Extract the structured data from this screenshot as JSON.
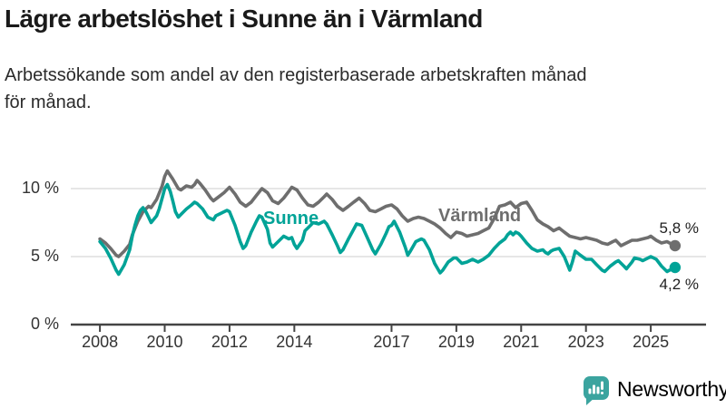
{
  "header": {
    "title": "Lägre arbetslöshet i Sunne än i Värmland",
    "subtitle": "Arbetssökande som andel av den registerbaserade arbetskraften månad för månad."
  },
  "colors": {
    "title_text": "#1a1a1a",
    "body_text": "#2b2b2b",
    "axis": "#444444",
    "axis_text": "#333333",
    "grid": "#dddddd",
    "varmland": "#6e6e6e",
    "sunne": "#00a397",
    "brand": "#3ba49f"
  },
  "chart_data": {
    "type": "line",
    "title": "Lägre arbetslöshet i Sunne än i Värmland",
    "xlabel": "",
    "ylabel": "",
    "xlim": [
      2007.1,
      2026.6
    ],
    "ylim": [
      0,
      12.5
    ],
    "grid": "horizontal",
    "legend_position": "inline-labels-on-lines",
    "x_ticks": [
      "2008",
      "2010",
      "2012",
      "2014",
      "2017",
      "2019",
      "2021",
      "2023",
      "2025"
    ],
    "x_tick_values": [
      2008,
      2010,
      2012,
      2014,
      2017,
      2019,
      2021,
      2023,
      2025
    ],
    "y_ticks": [
      {
        "value": 0,
        "label": "0 %"
      },
      {
        "value": 5,
        "label": "5 %"
      },
      {
        "value": 10,
        "label": "10 %"
      }
    ],
    "unit": "%",
    "series": [
      {
        "name": "Värmland",
        "color": "#6e6e6e",
        "end_label": "5,8 %",
        "end_value": 5.8,
        "points": [
          [
            2008.0,
            6.3
          ],
          [
            2008.17,
            6.0
          ],
          [
            2008.33,
            5.6
          ],
          [
            2008.5,
            5.1
          ],
          [
            2008.58,
            5.0
          ],
          [
            2008.75,
            5.4
          ],
          [
            2008.92,
            5.9
          ],
          [
            2009.0,
            6.6
          ],
          [
            2009.17,
            7.6
          ],
          [
            2009.33,
            8.3
          ],
          [
            2009.5,
            8.7
          ],
          [
            2009.58,
            8.6
          ],
          [
            2009.75,
            9.2
          ],
          [
            2009.92,
            10.2
          ],
          [
            2010.0,
            10.9
          ],
          [
            2010.08,
            11.3
          ],
          [
            2010.25,
            10.7
          ],
          [
            2010.42,
            10.0
          ],
          [
            2010.5,
            9.9
          ],
          [
            2010.67,
            10.2
          ],
          [
            2010.83,
            10.1
          ],
          [
            2010.92,
            10.3
          ],
          [
            2011.0,
            10.6
          ],
          [
            2011.08,
            10.4
          ],
          [
            2011.25,
            9.9
          ],
          [
            2011.42,
            9.3
          ],
          [
            2011.5,
            9.1
          ],
          [
            2011.67,
            9.4
          ],
          [
            2011.83,
            9.7
          ],
          [
            2012.0,
            10.1
          ],
          [
            2012.17,
            9.6
          ],
          [
            2012.33,
            9.0
          ],
          [
            2012.5,
            8.7
          ],
          [
            2012.67,
            9.0
          ],
          [
            2012.83,
            9.5
          ],
          [
            2013.0,
            10.0
          ],
          [
            2013.17,
            9.7
          ],
          [
            2013.33,
            9.1
          ],
          [
            2013.5,
            8.9
          ],
          [
            2013.67,
            9.3
          ],
          [
            2013.83,
            9.8
          ],
          [
            2013.92,
            10.1
          ],
          [
            2014.08,
            9.9
          ],
          [
            2014.25,
            9.3
          ],
          [
            2014.42,
            8.8
          ],
          [
            2014.58,
            8.7
          ],
          [
            2014.75,
            9.0
          ],
          [
            2014.92,
            9.4
          ],
          [
            2015.0,
            9.6
          ],
          [
            2015.17,
            9.2
          ],
          [
            2015.33,
            8.7
          ],
          [
            2015.5,
            8.4
          ],
          [
            2015.67,
            8.7
          ],
          [
            2015.83,
            9.0
          ],
          [
            2016.0,
            9.3
          ],
          [
            2016.17,
            8.9
          ],
          [
            2016.33,
            8.4
          ],
          [
            2016.5,
            8.3
          ],
          [
            2016.67,
            8.5
          ],
          [
            2016.83,
            8.7
          ],
          [
            2017.0,
            8.8
          ],
          [
            2017.17,
            8.5
          ],
          [
            2017.33,
            8.0
          ],
          [
            2017.5,
            7.6
          ],
          [
            2017.67,
            7.8
          ],
          [
            2017.83,
            7.9
          ],
          [
            2018.0,
            7.8
          ],
          [
            2018.17,
            7.6
          ],
          [
            2018.33,
            7.4
          ],
          [
            2018.5,
            7.1
          ],
          [
            2018.67,
            6.7
          ],
          [
            2018.83,
            6.4
          ],
          [
            2019.0,
            6.8
          ],
          [
            2019.17,
            6.7
          ],
          [
            2019.33,
            6.5
          ],
          [
            2019.5,
            6.6
          ],
          [
            2019.67,
            6.7
          ],
          [
            2019.83,
            6.9
          ],
          [
            2020.0,
            7.1
          ],
          [
            2020.17,
            7.8
          ],
          [
            2020.33,
            8.7
          ],
          [
            2020.5,
            8.8
          ],
          [
            2020.67,
            9.0
          ],
          [
            2020.83,
            8.6
          ],
          [
            2021.0,
            8.9
          ],
          [
            2021.17,
            9.0
          ],
          [
            2021.33,
            8.4
          ],
          [
            2021.5,
            7.7
          ],
          [
            2021.67,
            7.4
          ],
          [
            2021.83,
            7.2
          ],
          [
            2022.0,
            6.9
          ],
          [
            2022.17,
            7.1
          ],
          [
            2022.33,
            6.8
          ],
          [
            2022.5,
            6.5
          ],
          [
            2022.67,
            6.4
          ],
          [
            2022.83,
            6.3
          ],
          [
            2023.0,
            6.4
          ],
          [
            2023.17,
            6.3
          ],
          [
            2023.33,
            6.2
          ],
          [
            2023.5,
            6.0
          ],
          [
            2023.67,
            5.9
          ],
          [
            2023.83,
            6.1
          ],
          [
            2023.92,
            6.2
          ],
          [
            2024.08,
            5.8
          ],
          [
            2024.25,
            6.0
          ],
          [
            2024.42,
            6.2
          ],
          [
            2024.58,
            6.2
          ],
          [
            2024.75,
            6.3
          ],
          [
            2024.92,
            6.4
          ],
          [
            2025.0,
            6.5
          ],
          [
            2025.17,
            6.2
          ],
          [
            2025.33,
            6.0
          ],
          [
            2025.5,
            6.1
          ],
          [
            2025.58,
            6.0
          ],
          [
            2025.75,
            5.8
          ]
        ]
      },
      {
        "name": "Sunne",
        "color": "#00a397",
        "end_label": "4,2 %",
        "end_value": 4.2,
        "points": [
          [
            2008.0,
            6.1
          ],
          [
            2008.17,
            5.6
          ],
          [
            2008.33,
            4.9
          ],
          [
            2008.5,
            4.0
          ],
          [
            2008.58,
            3.7
          ],
          [
            2008.75,
            4.4
          ],
          [
            2008.92,
            5.5
          ],
          [
            2009.0,
            6.5
          ],
          [
            2009.08,
            7.3
          ],
          [
            2009.17,
            8.0
          ],
          [
            2009.25,
            8.4
          ],
          [
            2009.33,
            8.6
          ],
          [
            2009.42,
            8.3
          ],
          [
            2009.5,
            7.9
          ],
          [
            2009.58,
            7.5
          ],
          [
            2009.75,
            8.0
          ],
          [
            2009.83,
            8.5
          ],
          [
            2009.92,
            9.3
          ],
          [
            2010.0,
            10.0
          ],
          [
            2010.08,
            10.3
          ],
          [
            2010.17,
            9.8
          ],
          [
            2010.25,
            9.1
          ],
          [
            2010.33,
            8.3
          ],
          [
            2010.42,
            7.9
          ],
          [
            2010.5,
            8.1
          ],
          [
            2010.67,
            8.5
          ],
          [
            2010.83,
            8.8
          ],
          [
            2010.92,
            9.0
          ],
          [
            2011.0,
            8.9
          ],
          [
            2011.17,
            8.5
          ],
          [
            2011.33,
            7.9
          ],
          [
            2011.5,
            7.7
          ],
          [
            2011.58,
            8.0
          ],
          [
            2011.75,
            8.2
          ],
          [
            2011.92,
            8.4
          ],
          [
            2012.0,
            8.3
          ],
          [
            2012.17,
            7.3
          ],
          [
            2012.33,
            6.1
          ],
          [
            2012.42,
            5.6
          ],
          [
            2012.5,
            5.8
          ],
          [
            2012.67,
            6.8
          ],
          [
            2012.83,
            7.6
          ],
          [
            2012.92,
            8.0
          ],
          [
            2013.0,
            7.9
          ],
          [
            2013.17,
            7.0
          ],
          [
            2013.25,
            6.0
          ],
          [
            2013.33,
            5.7
          ],
          [
            2013.5,
            6.1
          ],
          [
            2013.67,
            6.5
          ],
          [
            2013.83,
            6.3
          ],
          [
            2013.92,
            6.4
          ],
          [
            2014.0,
            5.9
          ],
          [
            2014.08,
            5.6
          ],
          [
            2014.25,
            6.2
          ],
          [
            2014.33,
            6.9
          ],
          [
            2014.5,
            7.3
          ],
          [
            2014.58,
            7.5
          ],
          [
            2014.75,
            7.4
          ],
          [
            2014.92,
            7.6
          ],
          [
            2015.0,
            7.4
          ],
          [
            2015.17,
            6.6
          ],
          [
            2015.33,
            5.8
          ],
          [
            2015.42,
            5.3
          ],
          [
            2015.5,
            5.5
          ],
          [
            2015.67,
            6.3
          ],
          [
            2015.83,
            7.0
          ],
          [
            2015.92,
            7.4
          ],
          [
            2016.08,
            7.3
          ],
          [
            2016.25,
            6.4
          ],
          [
            2016.42,
            5.5
          ],
          [
            2016.5,
            5.2
          ],
          [
            2016.67,
            5.9
          ],
          [
            2016.83,
            6.7
          ],
          [
            2016.92,
            7.2
          ],
          [
            2017.0,
            7.3
          ],
          [
            2017.08,
            7.6
          ],
          [
            2017.25,
            6.8
          ],
          [
            2017.42,
            5.7
          ],
          [
            2017.5,
            5.1
          ],
          [
            2017.58,
            5.4
          ],
          [
            2017.75,
            6.1
          ],
          [
            2017.92,
            6.3
          ],
          [
            2018.0,
            6.2
          ],
          [
            2018.17,
            5.5
          ],
          [
            2018.33,
            4.5
          ],
          [
            2018.5,
            3.8
          ],
          [
            2018.58,
            4.0
          ],
          [
            2018.75,
            4.6
          ],
          [
            2018.92,
            4.9
          ],
          [
            2019.0,
            4.9
          ],
          [
            2019.17,
            4.5
          ],
          [
            2019.33,
            4.6
          ],
          [
            2019.5,
            4.8
          ],
          [
            2019.67,
            4.6
          ],
          [
            2019.83,
            4.8
          ],
          [
            2020.0,
            5.1
          ],
          [
            2020.17,
            5.6
          ],
          [
            2020.33,
            6.0
          ],
          [
            2020.5,
            6.3
          ],
          [
            2020.58,
            6.6
          ],
          [
            2020.67,
            6.8
          ],
          [
            2020.75,
            6.6
          ],
          [
            2020.83,
            6.8
          ],
          [
            2020.92,
            6.7
          ],
          [
            2021.0,
            6.5
          ],
          [
            2021.17,
            6.0
          ],
          [
            2021.33,
            5.6
          ],
          [
            2021.5,
            5.4
          ],
          [
            2021.67,
            5.5
          ],
          [
            2021.75,
            5.3
          ],
          [
            2021.83,
            5.2
          ],
          [
            2021.92,
            5.4
          ],
          [
            2022.0,
            5.5
          ],
          [
            2022.17,
            5.6
          ],
          [
            2022.33,
            5.0
          ],
          [
            2022.5,
            4.0
          ],
          [
            2022.58,
            4.6
          ],
          [
            2022.67,
            5.4
          ],
          [
            2022.83,
            5.1
          ],
          [
            2023.0,
            4.8
          ],
          [
            2023.17,
            4.8
          ],
          [
            2023.33,
            4.4
          ],
          [
            2023.5,
            4.0
          ],
          [
            2023.58,
            3.9
          ],
          [
            2023.75,
            4.3
          ],
          [
            2023.92,
            4.6
          ],
          [
            2024.0,
            4.7
          ],
          [
            2024.17,
            4.3
          ],
          [
            2024.25,
            4.1
          ],
          [
            2024.42,
            4.6
          ],
          [
            2024.5,
            4.9
          ],
          [
            2024.67,
            4.8
          ],
          [
            2024.75,
            4.7
          ],
          [
            2024.92,
            4.9
          ],
          [
            2025.0,
            5.0
          ],
          [
            2025.17,
            4.8
          ],
          [
            2025.33,
            4.3
          ],
          [
            2025.5,
            3.9
          ],
          [
            2025.58,
            4.0
          ],
          [
            2025.75,
            4.2
          ]
        ]
      }
    ]
  },
  "footer": {
    "brand": "Newsworthy",
    "logo_icon": "bar-chart-speech-bubble"
  }
}
